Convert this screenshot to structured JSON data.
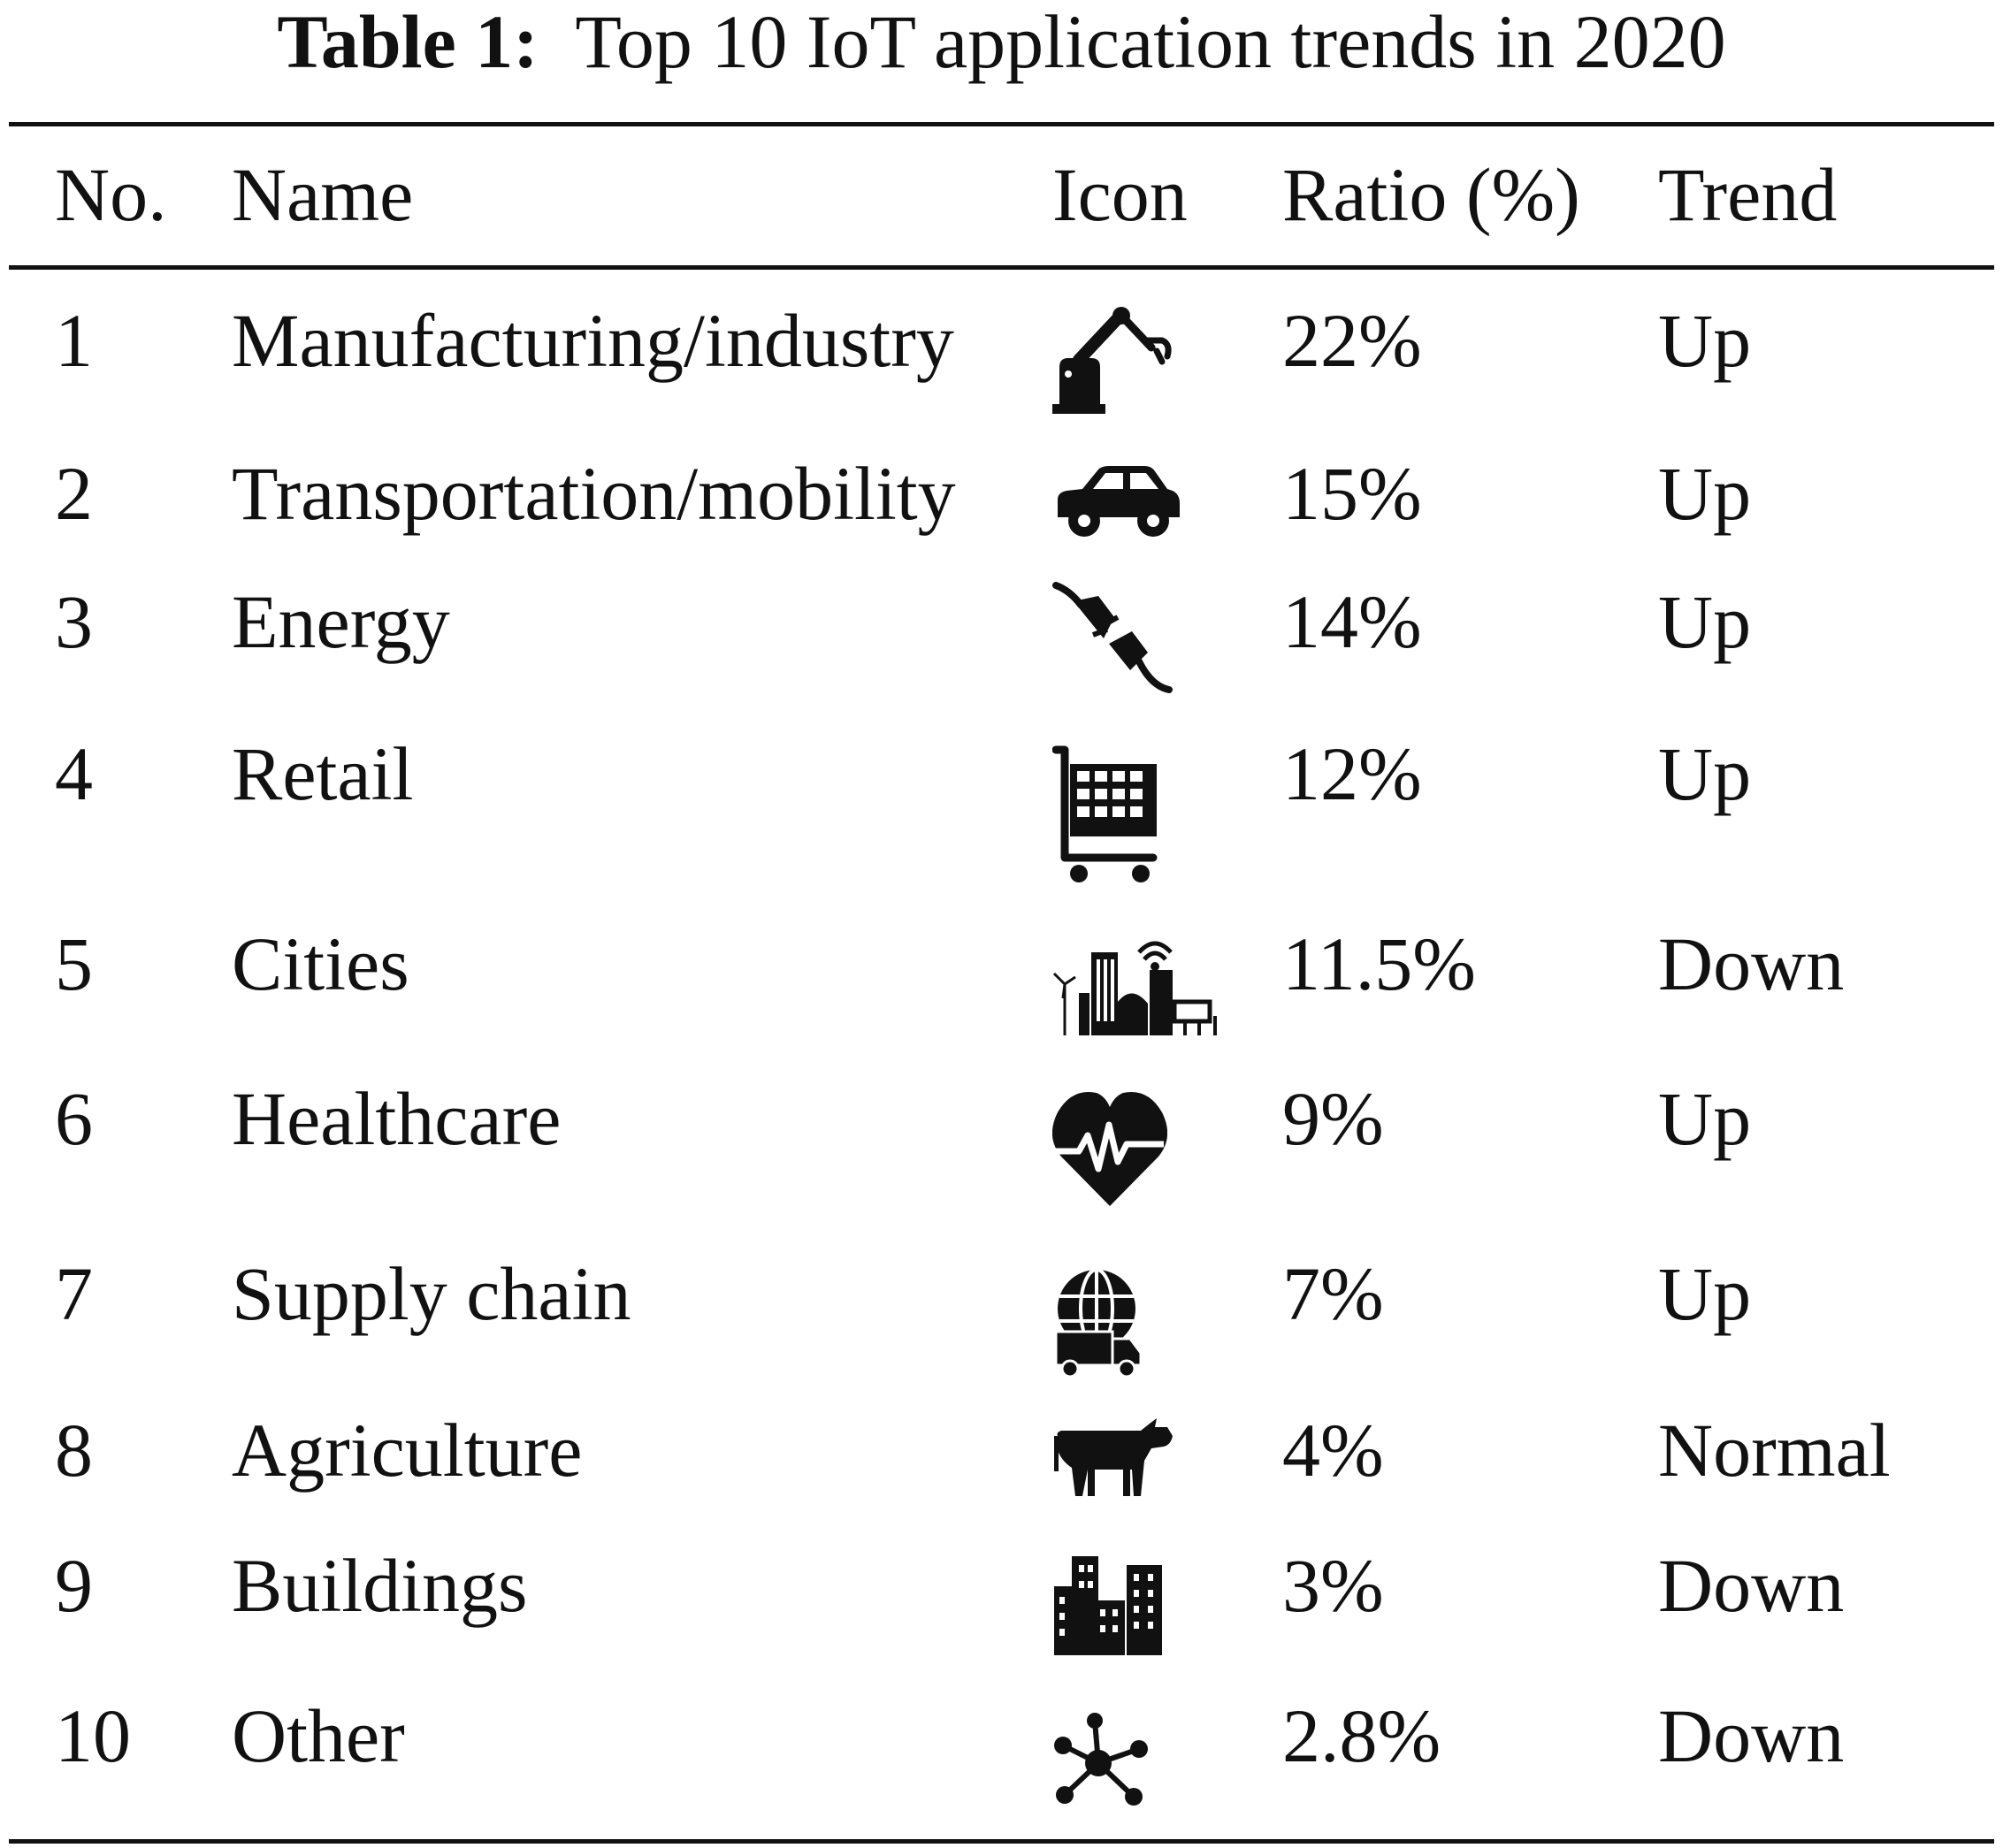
{
  "caption": {
    "label": "Table 1:",
    "text": "Top 10 IoT application trends in 2020"
  },
  "columns": {
    "no": "No.",
    "name": "Name",
    "icon": "Icon",
    "ratio": "Ratio (%)",
    "trend": "Trend"
  },
  "rows": [
    {
      "no": "1",
      "name": "Manufacturing/industry",
      "icon": "robot-arm-icon",
      "ratio": "22%",
      "trend": "Up"
    },
    {
      "no": "2",
      "name": "Transportation/mobility",
      "icon": "car-icon",
      "ratio": "15%",
      "trend": "Up"
    },
    {
      "no": "3",
      "name": "Energy",
      "icon": "power-plug-icon",
      "ratio": "14%",
      "trend": "Up"
    },
    {
      "no": "4",
      "name": "Retail",
      "icon": "shopping-cart-icon",
      "ratio": "12%",
      "trend": "Up"
    },
    {
      "no": "5",
      "name": "Cities",
      "icon": "smart-city-icon",
      "ratio": "11.5%",
      "trend": "Down"
    },
    {
      "no": "6",
      "name": "Healthcare",
      "icon": "heartbeat-icon",
      "ratio": "9%",
      "trend": "Up"
    },
    {
      "no": "7",
      "name": "Supply chain",
      "icon": "globe-truck-icon",
      "ratio": "7%",
      "trend": "Up"
    },
    {
      "no": "8",
      "name": "Agriculture",
      "icon": "cow-icon",
      "ratio": "4%",
      "trend": "Normal"
    },
    {
      "no": "9",
      "name": "Buildings",
      "icon": "buildings-icon",
      "ratio": "3%",
      "trend": "Down"
    },
    {
      "no": "10",
      "name": "Other",
      "icon": "network-hub-icon",
      "ratio": "2.8%",
      "trend": "Down"
    }
  ]
}
